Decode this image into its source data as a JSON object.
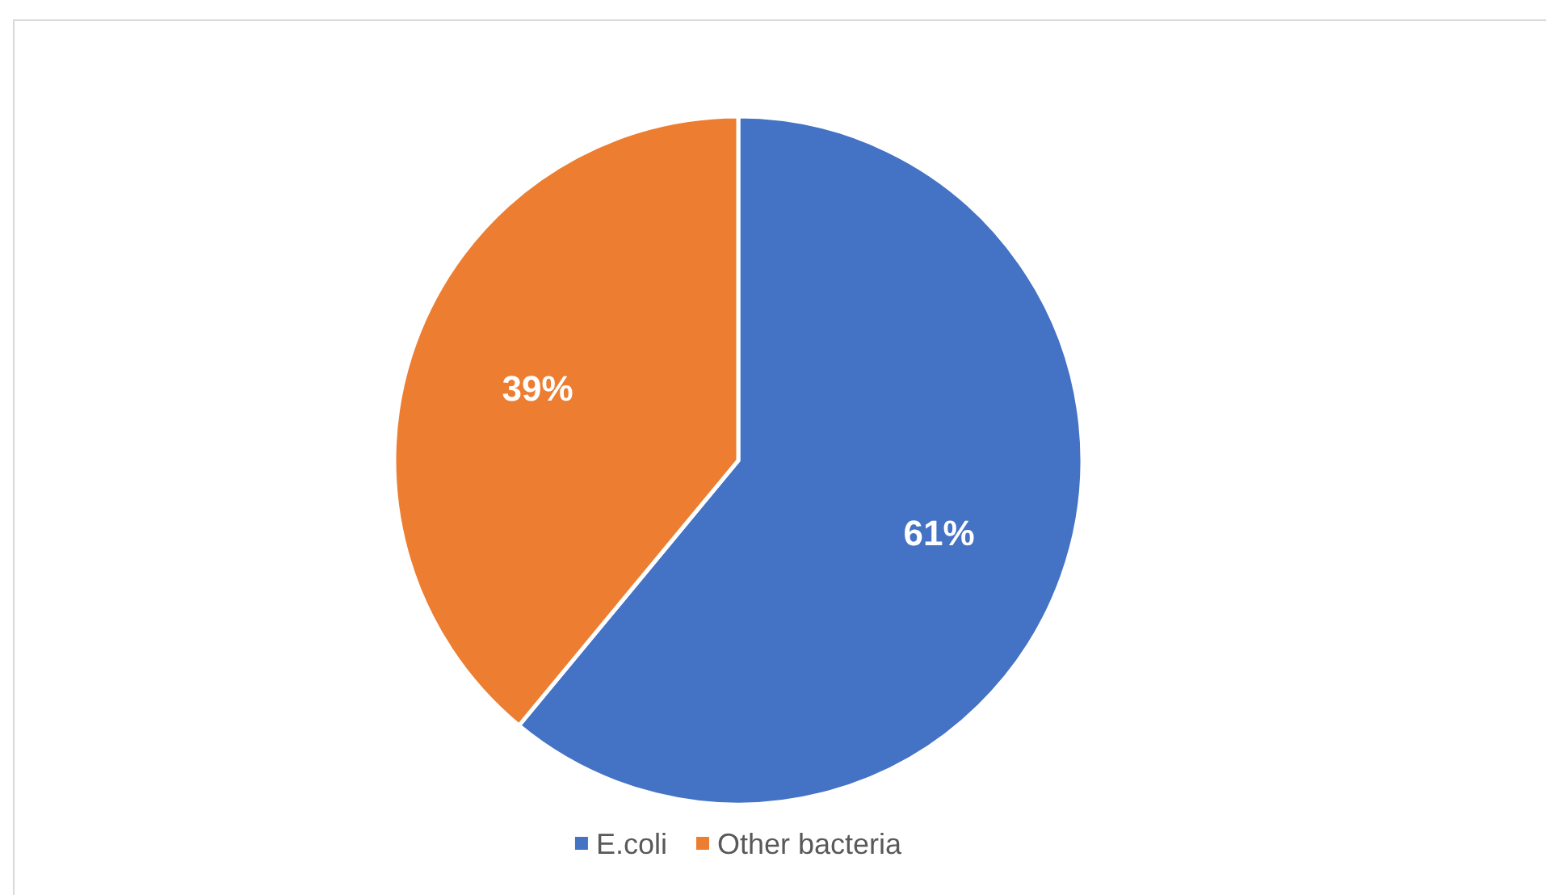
{
  "chart_data": {
    "type": "pie",
    "categories": [
      "E.coli",
      "Other bacteria"
    ],
    "values": [
      61,
      39
    ],
    "colors": [
      "#4472c4",
      "#ed7d31"
    ],
    "value_labels": [
      "61%",
      "39%"
    ],
    "legend": "bottom"
  }
}
